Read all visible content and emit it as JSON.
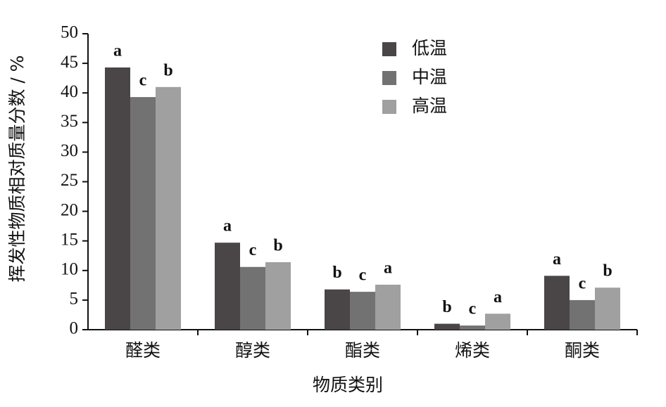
{
  "chart_data": {
    "type": "bar",
    "categories": [
      "醛类",
      "醇类",
      "酯类",
      "烯类",
      "酮类"
    ],
    "series": [
      {
        "name": "低温",
        "color": "#4a4546",
        "values": [
          44.3,
          14.7,
          6.8,
          1.0,
          9.1
        ],
        "labels": [
          "a",
          "a",
          "b",
          "b",
          "a"
        ]
      },
      {
        "name": "中温",
        "color": "#737272",
        "values": [
          39.3,
          10.6,
          6.4,
          0.7,
          5.0
        ],
        "labels": [
          "c",
          "c",
          "c",
          "c",
          "c"
        ]
      },
      {
        "name": "高温",
        "color": "#a0a0a0",
        "values": [
          41.0,
          11.4,
          7.6,
          2.7,
          7.1
        ],
        "labels": [
          "b",
          "b",
          "a",
          "a",
          "b"
        ]
      }
    ],
    "ylim": [
      0,
      50
    ],
    "yticks": [
      0,
      5,
      10,
      15,
      20,
      25,
      30,
      35,
      40,
      45,
      50
    ],
    "xlabel": "物质类别",
    "ylabel": "挥发性物质相对质量分数 / %",
    "legend": "top-right"
  }
}
